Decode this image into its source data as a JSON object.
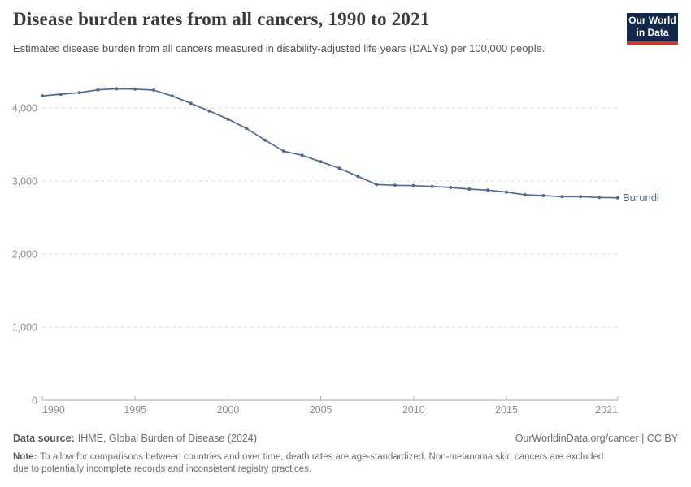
{
  "header": {
    "logo": {
      "line1": "Our World",
      "line2": "in Data",
      "bg_color": "#12284b",
      "stripe_color": "#e0301e"
    }
  },
  "chart_data": {
    "type": "line",
    "title": "Disease burden rates from all cancers, 1990 to 2021",
    "subtitle": "Estimated disease burden from all cancers measured in disability-adjusted life years (DALYs) per 100,000 people.",
    "xlabel": "",
    "ylabel": "DALYs per 100,000 people",
    "xlim": [
      1990,
      2021
    ],
    "ylim": [
      0,
      4400
    ],
    "xticks": [
      1990,
      1995,
      2000,
      2005,
      2010,
      2015,
      2021
    ],
    "yticks": [
      0,
      1000,
      2000,
      3000,
      4000
    ],
    "grid": "horizontal-dashed",
    "legend_position": "end-of-line-label",
    "axis_color": "#a9a9a9",
    "tick_label_color": "#8e8e8e",
    "gridline_color": "#dcdcdc",
    "x": [
      1990,
      1991,
      1992,
      1993,
      1994,
      1995,
      1996,
      1997,
      1998,
      1999,
      2000,
      2001,
      2002,
      2003,
      2004,
      2005,
      2006,
      2007,
      2008,
      2009,
      2010,
      2011,
      2012,
      2013,
      2014,
      2015,
      2016,
      2017,
      2018,
      2019,
      2020,
      2021
    ],
    "series": [
      {
        "name": "Burundi",
        "color": "#4C6A9C",
        "values": [
          4165,
          4188,
          4210,
          4248,
          4262,
          4258,
          4244,
          4163,
          4063,
          3959,
          3848,
          3719,
          3559,
          3408,
          3352,
          3263,
          3174,
          3063,
          2952,
          2941,
          2937,
          2926,
          2911,
          2889,
          2874,
          2848,
          2811,
          2800,
          2785,
          2785,
          2774,
          2770
        ]
      }
    ]
  },
  "footer": {
    "datasource_label": "Data source:",
    "datasource_value": "IHME, Global Burden of Disease (2024)",
    "license": "OurWorldinData.org/cancer | CC BY",
    "note_label": "Note:",
    "note_text": "To allow for comparisons between countries and over time, death rates are age-standardized. Non-melanoma skin cancers are excluded due to potentially incomplete records and inconsistent registry practices."
  }
}
